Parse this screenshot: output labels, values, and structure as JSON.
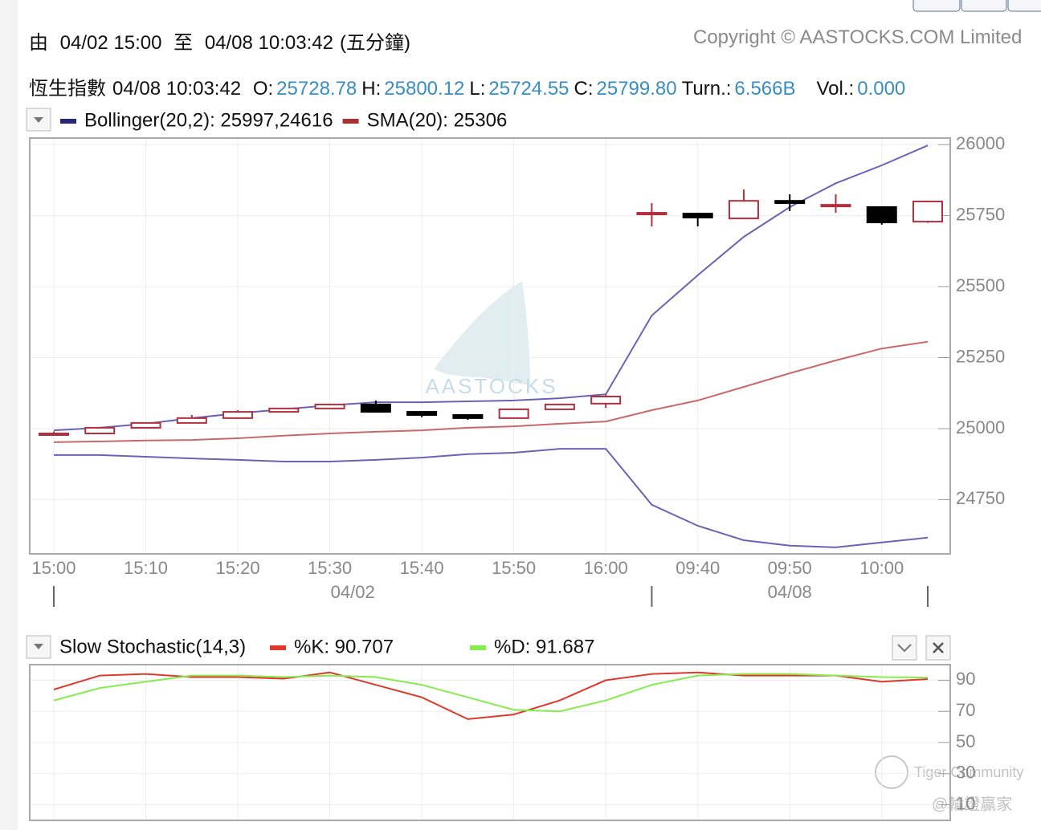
{
  "header": {
    "from": "由",
    "start": "04/02 15:00",
    "to": "至",
    "end": "04/08 10:03:42",
    "interval": "(五分鐘)",
    "copyright": "Copyright © AASTOCKS.COM Limited"
  },
  "quote": {
    "name": "恆生指數",
    "time": "04/08 10:03:42",
    "fields": [
      {
        "label": "O:",
        "value": "25728.78"
      },
      {
        "label": "H:",
        "value": "25800.12"
      },
      {
        "label": "L:",
        "value": "25724.55"
      },
      {
        "label": "C:",
        "value": "25799.80"
      },
      {
        "label": "Turn.:",
        "value": "6.566B"
      },
      {
        "label": "Vol.:",
        "value": "0.000"
      }
    ]
  },
  "watermarks": {
    "logo": "AASTOCKS",
    "community": "Tiger Community",
    "author": "@輪證贏家"
  },
  "chart_data": [
    {
      "type": "candlestick",
      "legend": [
        {
          "label": "Bollinger(20,2): 25997,24616",
          "color": "#27277a"
        },
        {
          "label": "SMA(20): 25306",
          "color": "#a83232"
        }
      ],
      "categories": [
        "15:00",
        null,
        "15:10",
        null,
        "15:20",
        null,
        "15:30",
        null,
        "15:40",
        null,
        "15:50",
        null,
        "16:00",
        null,
        "09:40",
        null,
        "09:50",
        null,
        "10:00",
        null
      ],
      "date_labels": [
        "04/02",
        "04/08"
      ],
      "open": [
        24983,
        24983,
        25003,
        25020,
        25037,
        25059,
        25071,
        25085,
        25059,
        25048,
        25037,
        25068,
        25088,
        25760,
        25757,
        25740,
        25802,
        25788,
        25780,
        25728.78
      ],
      "high": [
        24990,
        25003,
        25020,
        25048,
        25065,
        25073,
        25088,
        25099,
        25062,
        25050,
        25068,
        25088,
        25121,
        25794,
        25760,
        25842,
        25825,
        25825,
        25780,
        25800.12
      ],
      "low": [
        24975,
        24983,
        25003,
        25020,
        25037,
        25059,
        25071,
        25059,
        25040,
        25031,
        25037,
        25068,
        25073,
        25712,
        25712,
        25740,
        25766,
        25760,
        25718,
        25724.55
      ],
      "close": [
        24983,
        25003,
        25020,
        25037,
        25059,
        25071,
        25085,
        25059,
        25048,
        25037,
        25068,
        25085,
        25113,
        25760,
        25743,
        25802,
        25794,
        25788,
        25726,
        25799.8
      ],
      "up_color": "#b03040",
      "down_color": "#000000",
      "series": [
        {
          "color": "#6a62b4",
          "values": [
            24994,
            25003,
            25017,
            25037,
            25054,
            25068,
            25082,
            25093,
            25093,
            25096,
            25099,
            25107,
            25121,
            25398,
            25540,
            25675,
            25780,
            25864,
            25927,
            25997
          ]
        },
        {
          "color": "#6a62b4",
          "values": [
            24907,
            24907,
            24901,
            24895,
            24890,
            24884,
            24884,
            24890,
            24898,
            24910,
            24915,
            24929,
            24929,
            24732,
            24658,
            24607,
            24588,
            24582,
            24599,
            24616
          ]
        },
        {
          "color": "#c86a6a",
          "values": [
            24952,
            24955,
            24958,
            24960,
            24966,
            24975,
            24983,
            24989,
            24994,
            25003,
            25008,
            25017,
            25025,
            25065,
            25099,
            25147,
            25195,
            25240,
            25282,
            25306
          ]
        }
      ],
      "ylim": [
        24559,
        26023
      ],
      "yticks": [
        24750,
        25000,
        25250,
        25500,
        25750,
        26000
      ],
      "grid": true
    },
    {
      "type": "line",
      "title": "Slow Stochastic(14,3)",
      "series": [
        {
          "name": "%K: 90.707",
          "color": "#e0392c",
          "values": [
            84,
            93,
            94,
            92,
            92,
            91,
            95,
            87,
            79,
            65,
            68,
            77,
            90,
            94,
            95,
            93,
            93,
            93,
            89,
            90.707
          ]
        },
        {
          "name": "%D: 91.687",
          "color": "#84ec4c",
          "values": [
            77,
            85,
            89,
            93,
            93,
            92,
            93,
            92,
            87,
            79,
            71,
            70,
            77,
            87,
            93,
            94,
            94,
            93,
            92,
            91.687
          ]
        }
      ],
      "ylim": [
        0,
        100
      ],
      "yticks": [
        10,
        30,
        50,
        70,
        90
      ],
      "grid": true
    }
  ]
}
